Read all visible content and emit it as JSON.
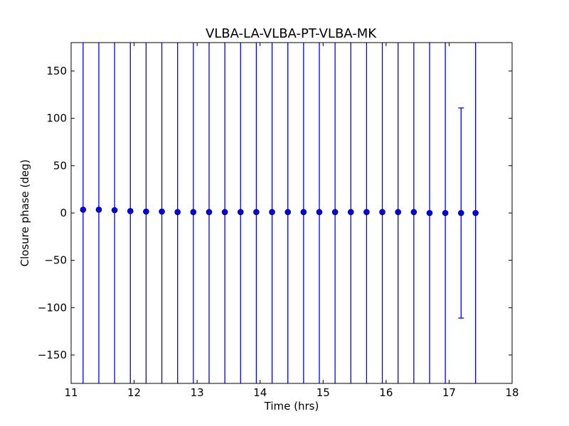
{
  "chart_data": {
    "type": "scatter",
    "title": "VLBA-LA-VLBA-PT-VLBA-MK",
    "xlabel": "Time (hrs)",
    "ylabel": "Closure phase (deg)",
    "xlim": [
      11,
      18
    ],
    "ylim": [
      -180,
      180
    ],
    "xticks": [
      11,
      12,
      13,
      14,
      15,
      16,
      17,
      18
    ],
    "yticks": [
      -150,
      -100,
      -50,
      0,
      50,
      100,
      150
    ],
    "grid": false,
    "marker_color": "#0000ff",
    "errorbar_color": "#0000ff",
    "series": [
      {
        "x": [
          11.19,
          11.44,
          11.69,
          11.94,
          12.19,
          12.44,
          12.69,
          12.94,
          13.19,
          13.44,
          13.69,
          13.94,
          14.19,
          14.44,
          14.69,
          14.94,
          15.19,
          15.44,
          15.69,
          15.94,
          16.19,
          16.44,
          16.69,
          16.94,
          17.19,
          17.42
        ],
        "y": [
          3.5,
          3.5,
          3.0,
          2.0,
          1.5,
          1.5,
          1.0,
          1.0,
          1.0,
          1.0,
          1.0,
          1.0,
          1.0,
          1.0,
          1.0,
          1.0,
          1.0,
          1.0,
          1.0,
          1.0,
          1.0,
          1.0,
          0.0,
          0.0,
          0.0,
          0.0
        ],
        "yerr": [
          null,
          null,
          null,
          null,
          null,
          null,
          null,
          null,
          null,
          null,
          null,
          null,
          null,
          null,
          null,
          null,
          null,
          null,
          null,
          null,
          null,
          null,
          null,
          null,
          111,
          null
        ]
      }
    ]
  }
}
